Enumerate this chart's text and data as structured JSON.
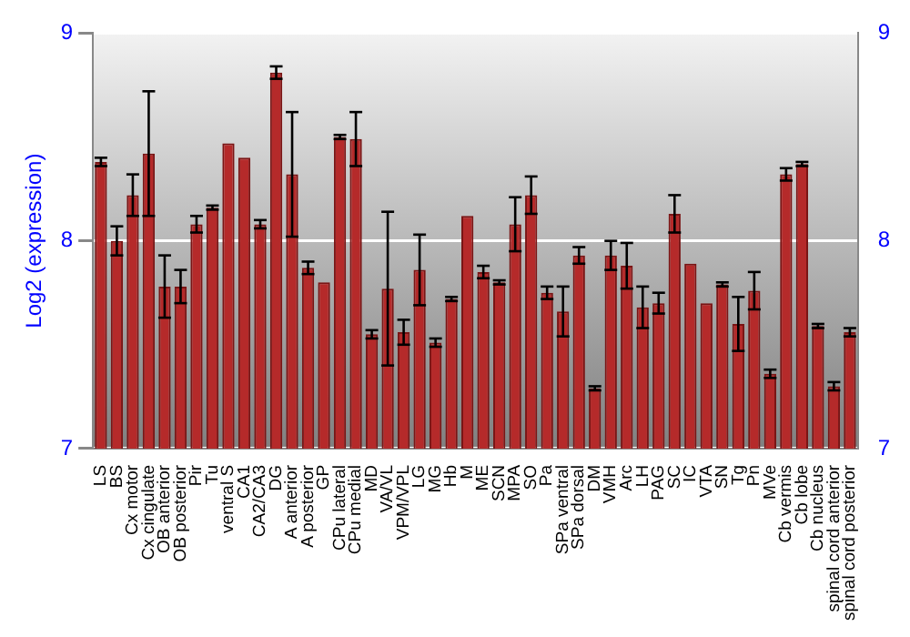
{
  "chart_data": {
    "type": "bar",
    "ylabel": "Log2 (expression)",
    "categories": [
      "LS",
      "BS",
      "Cx motor",
      "Cx cingulate",
      "OB anterior",
      "OB posterior",
      "Pir",
      "Tu",
      "ventral S",
      "CA1",
      "CA2/CA3",
      "DG",
      "A anterior",
      "A posterior",
      "GP",
      "CPu lateral",
      "CPu medial",
      "MD",
      "VA/VL",
      "VPM/VPL",
      "LG",
      "MG",
      "Hb",
      "M",
      "ME",
      "SCN",
      "MPA",
      "SO",
      "Pa",
      "SPa ventral",
      "SPa dorsal",
      "DM",
      "VMH",
      "Arc",
      "LH",
      "PAG",
      "SC",
      "IC",
      "VTA",
      "SN",
      "Tg",
      "Pn",
      "MVe",
      "Cb vermis",
      "Cb lobe",
      "Cb nucleus",
      "spinal cord anterior",
      "spinal cord posterior"
    ],
    "values": [
      8.38,
      8.0,
      8.22,
      8.42,
      7.78,
      7.78,
      8.08,
      8.16,
      8.47,
      8.4,
      8.08,
      8.81,
      8.32,
      7.87,
      7.8,
      8.5,
      8.49,
      7.55,
      7.77,
      7.56,
      7.86,
      7.51,
      7.72,
      8.12,
      7.85,
      7.8,
      8.08,
      8.22,
      7.75,
      7.66,
      7.93,
      7.29,
      7.93,
      7.88,
      7.68,
      7.7,
      8.13,
      7.89,
      7.7,
      7.79,
      7.6,
      7.76,
      7.36,
      8.32,
      8.37,
      7.59,
      7.3,
      7.56
    ],
    "errors": [
      0.02,
      0.07,
      0.1,
      0.3,
      0.15,
      0.08,
      0.04,
      0.01,
      null,
      null,
      0.02,
      0.03,
      0.3,
      0.03,
      null,
      0.01,
      0.13,
      0.02,
      0.37,
      0.06,
      0.17,
      0.02,
      0.01,
      null,
      0.03,
      0.01,
      0.13,
      0.09,
      0.03,
      0.12,
      0.04,
      0.01,
      0.07,
      0.11,
      0.1,
      0.05,
      0.09,
      null,
      null,
      0.01,
      0.13,
      0.09,
      0.02,
      0.03,
      0.01,
      0.01,
      0.02,
      0.02
    ],
    "color": "#b52a2a",
    "ylim": [
      7,
      9
    ],
    "yticks": [
      7,
      8,
      9
    ],
    "y2lim": [
      7,
      9
    ],
    "y2ticks": [
      7,
      8,
      9
    ],
    "grid": "y",
    "legend": false
  }
}
